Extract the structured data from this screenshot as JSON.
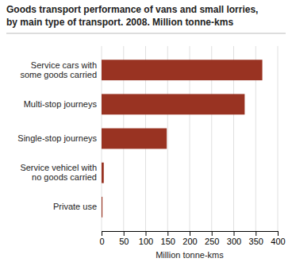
{
  "chart_data": {
    "type": "bar",
    "orientation": "horizontal",
    "title": "Goods transport performance of vans and small lorries,",
    "subtitle": "by main type of transport. 2008. Million tonne-kms",
    "categories": [
      "Private use",
      "Service vehicel with\nno goods carried",
      "Single-stop journeys",
      "Multi-stop journeys",
      "Service cars with\nsome goods carried"
    ],
    "values": [
      2,
      5,
      148,
      325,
      365
    ],
    "color": "#993322",
    "xlabel": "Million tonne-kms",
    "xlim": [
      0,
      400
    ],
    "xticks": [
      0,
      50,
      100,
      150,
      200,
      250,
      300,
      350,
      400
    ],
    "grid": true
  }
}
